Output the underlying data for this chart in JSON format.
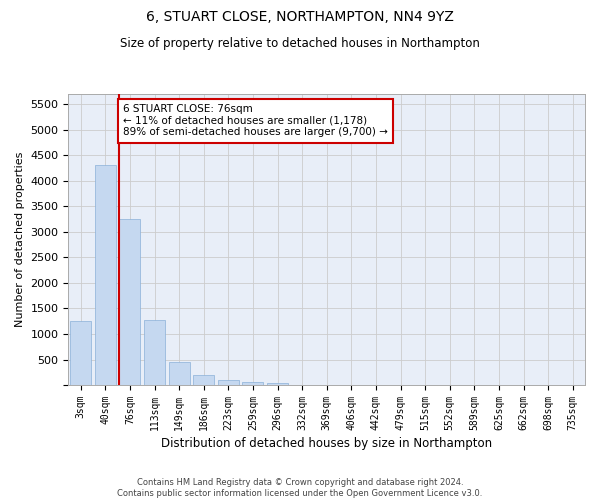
{
  "title": "6, STUART CLOSE, NORTHAMPTON, NN4 9YZ",
  "subtitle": "Size of property relative to detached houses in Northampton",
  "xlabel": "Distribution of detached houses by size in Northampton",
  "ylabel": "Number of detached properties",
  "footer_line1": "Contains HM Land Registry data © Crown copyright and database right 2024.",
  "footer_line2": "Contains public sector information licensed under the Open Government Licence v3.0.",
  "annotation_title": "6 STUART CLOSE: 76sqm",
  "annotation_line2": "← 11% of detached houses are smaller (1,178)",
  "annotation_line3": "89% of semi-detached houses are larger (9,700) →",
  "bar_color": "#c5d8f0",
  "bar_edge_color": "#8ab0d8",
  "vline_color": "#cc0000",
  "annotation_box_color": "#cc0000",
  "categories": [
    "3sqm",
    "40sqm",
    "76sqm",
    "113sqm",
    "149sqm",
    "186sqm",
    "223sqm",
    "259sqm",
    "296sqm",
    "332sqm",
    "369sqm",
    "406sqm",
    "442sqm",
    "479sqm",
    "515sqm",
    "552sqm",
    "589sqm",
    "625sqm",
    "662sqm",
    "698sqm",
    "735sqm"
  ],
  "bar_values": [
    1250,
    4300,
    3250,
    1280,
    460,
    190,
    100,
    70,
    50,
    0,
    0,
    0,
    0,
    0,
    0,
    0,
    0,
    0,
    0,
    0,
    0
  ],
  "ylim": [
    0,
    5700
  ],
  "yticks": [
    0,
    500,
    1000,
    1500,
    2000,
    2500,
    3000,
    3500,
    4000,
    4500,
    5000,
    5500
  ],
  "grid_color": "#cccccc",
  "bg_color": "#ffffff",
  "plot_bg_color": "#e8eef8"
}
